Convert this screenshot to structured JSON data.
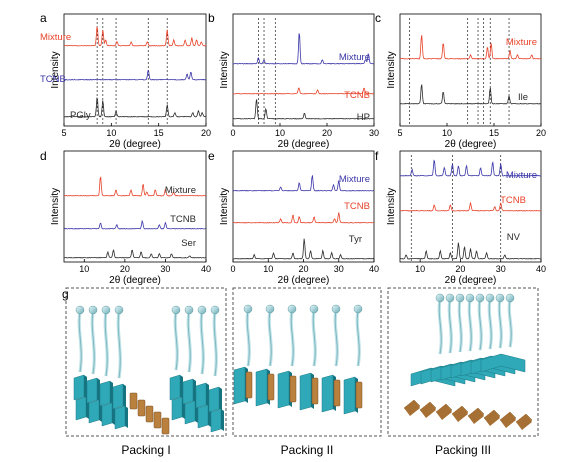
{
  "colors": {
    "mixture": "#e8432a",
    "tcnb": "#3a35a8",
    "ref": "#2b2b2b",
    "cyan": "#2fa9b8",
    "bronze": "#b9803e"
  },
  "chart_data": [
    {
      "panel": "a",
      "type": "line",
      "xlabel": "2θ (degree)",
      "ylabel": "Intensity",
      "xlim": [
        5,
        20
      ],
      "xticks": [
        5,
        10,
        15,
        20
      ],
      "series": [
        {
          "name": "Mixture",
          "label_color": "mixture",
          "line": "mixture",
          "peaks": [
            [
              8.5,
              10
            ],
            [
              9.1,
              8
            ],
            [
              9.4,
              3
            ],
            [
              10.6,
              2
            ],
            [
              12.1,
              2
            ],
            [
              13.8,
              2
            ],
            [
              15.9,
              8
            ],
            [
              16.6,
              3
            ],
            [
              17.8,
              3
            ],
            [
              18.5,
              4
            ],
            [
              19.0,
              3
            ],
            [
              19.5,
              2
            ]
          ]
        },
        {
          "name": "TCNB",
          "label_color": "tcnb",
          "line": "tcnb",
          "peaks": [
            [
              13.9,
              5
            ],
            [
              18.0,
              3
            ],
            [
              18.4,
              4
            ]
          ]
        },
        {
          "name": "PGly",
          "label_color": "ref",
          "line": "ref",
          "peaks": [
            [
              8.5,
              10
            ],
            [
              9.1,
              8
            ],
            [
              10.5,
              3
            ],
            [
              15.9,
              6
            ],
            [
              16.7,
              2
            ],
            [
              18.6,
              2
            ],
            [
              19.2,
              3
            ],
            [
              19.6,
              2
            ]
          ]
        }
      ],
      "dashed": [
        8.5,
        9.1,
        10.5,
        13.9,
        15.9
      ]
    },
    {
      "panel": "b",
      "type": "line",
      "xlabel": "2θ (degree)",
      "ylabel": "Intensity",
      "xlim": [
        0,
        30
      ],
      "xticks": [
        0,
        10,
        20,
        30
      ],
      "series": [
        {
          "name": "Mixture",
          "label_color": "tcnb",
          "line": "tcnb",
          "peaks": [
            [
              5.4,
              3
            ],
            [
              6.6,
              2
            ],
            [
              14.1,
              16
            ],
            [
              19.0,
              2
            ],
            [
              28.2,
              2
            ],
            [
              28.8,
              5
            ]
          ]
        },
        {
          "name": "TCNB",
          "label_color": "mixture",
          "line": "mixture",
          "peaks": [
            [
              14.0,
              3
            ],
            [
              18.0,
              2
            ],
            [
              27.9,
              3
            ]
          ]
        },
        {
          "name": "HP",
          "label_color": "ref",
          "line": "ref",
          "peaks": [
            [
              5.0,
              10
            ],
            [
              7.0,
              5
            ],
            [
              15.2,
              3
            ]
          ]
        }
      ],
      "dashed": [
        5.4,
        6.6,
        9.0
      ]
    },
    {
      "panel": "c",
      "type": "line",
      "xlabel": "2θ (degree)",
      "ylabel": "Intensity",
      "xlim": [
        5,
        20
      ],
      "xticks": [
        5,
        10,
        15,
        20
      ],
      "series": [
        {
          "name": "Mixture",
          "label_color": "mixture",
          "line": "mixture",
          "peaks": [
            [
              7.3,
              12
            ],
            [
              9.6,
              8
            ],
            [
              12.5,
              2
            ],
            [
              14.3,
              6
            ],
            [
              14.7,
              8
            ],
            [
              16.7,
              4
            ],
            [
              17.5,
              2
            ],
            [
              19.0,
              2
            ]
          ]
        },
        {
          "name": "Ile",
          "label_color": "ref",
          "line": "ref",
          "peaks": [
            [
              7.3,
              10
            ],
            [
              9.6,
              6
            ],
            [
              14.6,
              8
            ],
            [
              16.6,
              4
            ]
          ]
        }
      ],
      "dashed": [
        6.0,
        12.2,
        13.3,
        13.9,
        14.6,
        16.6
      ]
    },
    {
      "panel": "d",
      "type": "line",
      "xlabel": "2θ (degree)",
      "ylabel": "Intensity",
      "xlim": [
        5,
        40
      ],
      "xticks": [
        10,
        20,
        30,
        40
      ],
      "series": [
        {
          "name": "Mixture",
          "label_color": "ref",
          "line": "mixture",
          "peaks": [
            [
              14.0,
              10
            ],
            [
              17.8,
              3
            ],
            [
              21.5,
              3
            ],
            [
              24.5,
              6
            ],
            [
              25.4,
              2
            ],
            [
              27.5,
              3
            ],
            [
              30.0,
              3
            ],
            [
              32.0,
              2
            ]
          ]
        },
        {
          "name": "TCNB",
          "label_color": "ref",
          "line": "tcnb",
          "peaks": [
            [
              14.0,
              3
            ],
            [
              18.0,
              2
            ],
            [
              24.3,
              4
            ],
            [
              28.5,
              2
            ],
            [
              30.0,
              3
            ]
          ]
        },
        {
          "name": "Ser",
          "label_color": "ref",
          "line": "ref",
          "peaks": [
            [
              15.8,
              3
            ],
            [
              17.2,
              4
            ],
            [
              21.8,
              4
            ],
            [
              24.0,
              3
            ],
            [
              26.5,
              2
            ],
            [
              28.5,
              2
            ],
            [
              31.5,
              2
            ],
            [
              36.0,
              1
            ]
          ]
        }
      ],
      "dashed": []
    },
    {
      "panel": "e",
      "type": "line",
      "xlabel": "2θ (degree)",
      "ylabel": "Intensity",
      "xlim": [
        0,
        40
      ],
      "xticks": [
        0,
        10,
        20,
        30,
        40
      ],
      "series": [
        {
          "name": "Mixture",
          "label_color": "tcnb",
          "line": "tcnb",
          "peaks": [
            [
              13.5,
              2
            ],
            [
              18.8,
              4
            ],
            [
              22.5,
              8
            ],
            [
              28.5,
              3
            ],
            [
              30.0,
              5
            ]
          ]
        },
        {
          "name": "TCNB",
          "label_color": "mixture",
          "line": "mixture",
          "peaks": [
            [
              13.5,
              2
            ],
            [
              17.0,
              4
            ],
            [
              18.8,
              3
            ],
            [
              23.0,
              3
            ],
            [
              28.8,
              2
            ],
            [
              30.0,
              5
            ]
          ]
        },
        {
          "name": "Tyr",
          "label_color": "ref",
          "line": "ref",
          "peaks": [
            [
              6.0,
              2
            ],
            [
              11.5,
              3
            ],
            [
              17.0,
              3
            ],
            [
              20.2,
              10
            ],
            [
              22.0,
              4
            ],
            [
              25.5,
              4
            ],
            [
              28.0,
              3
            ],
            [
              30.5,
              2
            ]
          ]
        }
      ],
      "dashed": []
    },
    {
      "panel": "f",
      "type": "line",
      "xlabel": "2θ (degree)",
      "ylabel": "Intensity",
      "xlim": [
        5,
        40
      ],
      "xticks": [
        10,
        20,
        30,
        40
      ],
      "series": [
        {
          "name": "Mixture",
          "label_color": "tcnb",
          "line": "tcnb",
          "peaks": [
            [
              8.0,
              3
            ],
            [
              13.5,
              8
            ],
            [
              16.0,
              4
            ],
            [
              18.0,
              6
            ],
            [
              19.5,
              5
            ],
            [
              21.5,
              5
            ],
            [
              25.0,
              4
            ],
            [
              28.0,
              7
            ],
            [
              30.0,
              6
            ]
          ]
        },
        {
          "name": "TCNB",
          "label_color": "mixture",
          "line": "mixture",
          "peaks": [
            [
              13.5,
              3
            ],
            [
              17.5,
              3
            ],
            [
              22.5,
              4
            ],
            [
              28.5,
              2
            ],
            [
              30.0,
              4
            ]
          ]
        },
        {
          "name": "NV",
          "label_color": "ref",
          "line": "ref",
          "peaks": [
            [
              6.5,
              2
            ],
            [
              11.5,
              4
            ],
            [
              15.0,
              4
            ],
            [
              17.5,
              3
            ],
            [
              19.5,
              8
            ],
            [
              21.0,
              6
            ],
            [
              22.5,
              5
            ],
            [
              24.0,
              4
            ],
            [
              26.5,
              3
            ],
            [
              31.0,
              2
            ]
          ]
        }
      ],
      "dashed": [
        7.8,
        18.0,
        30.0
      ]
    }
  ],
  "packing": [
    {
      "letter": "g",
      "caption": "Packing I"
    },
    {
      "caption": "Packing II"
    },
    {
      "caption": "Packing III"
    }
  ]
}
